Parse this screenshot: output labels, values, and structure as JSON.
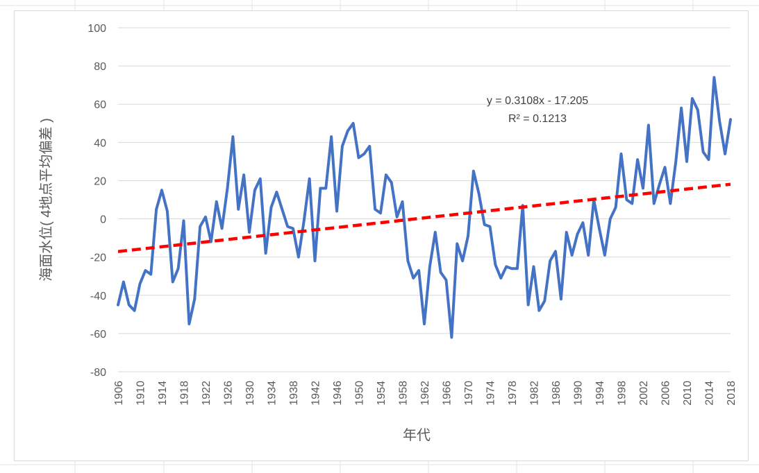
{
  "chart_data": {
    "type": "line",
    "title": "",
    "xlabel": "年代",
    "ylabel": "海面水位( 4地点平均偏差 )",
    "ylim": [
      -80,
      100
    ],
    "yticks": [
      100,
      80,
      60,
      40,
      20,
      0,
      -20,
      -40,
      -60,
      -80
    ],
    "xlim": [
      1906,
      2018
    ],
    "xticks": [
      1906,
      1910,
      1914,
      1918,
      1922,
      1926,
      1930,
      1934,
      1938,
      1942,
      1946,
      1950,
      1954,
      1958,
      1962,
      1966,
      1970,
      1974,
      1978,
      1982,
      1986,
      1990,
      1994,
      1998,
      2002,
      2006,
      2010,
      2014,
      2018
    ],
    "grid": true,
    "legend": "none",
    "series": [
      {
        "color": "#4472c4",
        "x": [
          1906,
          1907,
          1908,
          1909,
          1910,
          1911,
          1912,
          1913,
          1914,
          1915,
          1916,
          1917,
          1918,
          1919,
          1920,
          1921,
          1922,
          1923,
          1924,
          1925,
          1926,
          1927,
          1928,
          1929,
          1930,
          1931,
          1932,
          1933,
          1934,
          1935,
          1936,
          1937,
          1938,
          1939,
          1940,
          1941,
          1942,
          1943,
          1944,
          1945,
          1946,
          1947,
          1948,
          1949,
          1950,
          1951,
          1952,
          1953,
          1954,
          1955,
          1956,
          1957,
          1958,
          1959,
          1960,
          1961,
          1962,
          1963,
          1964,
          1965,
          1966,
          1967,
          1968,
          1969,
          1970,
          1971,
          1972,
          1973,
          1974,
          1975,
          1976,
          1977,
          1978,
          1979,
          1980,
          1981,
          1982,
          1983,
          1984,
          1985,
          1986,
          1987,
          1988,
          1989,
          1990,
          1991,
          1992,
          1993,
          1994,
          1995,
          1996,
          1997,
          1998,
          1999,
          2000,
          2001,
          2002,
          2003,
          2004,
          2005,
          2006,
          2007,
          2008,
          2009,
          2010,
          2011,
          2012,
          2013,
          2014,
          2015,
          2016,
          2017,
          2018
        ],
        "y": [
          -45,
          -33,
          -45,
          -48,
          -34,
          -27,
          -29,
          5,
          15,
          4,
          -33,
          -26,
          -1,
          -55,
          -42,
          -4,
          1,
          -12,
          9,
          -5,
          16,
          43,
          5,
          23,
          -7,
          15,
          21,
          -18,
          6,
          14,
          5,
          -4,
          -5,
          -20,
          -1,
          21,
          -22,
          16,
          16,
          43,
          4,
          38,
          46,
          50,
          32,
          34,
          38,
          5,
          3,
          23,
          19,
          1,
          9,
          -22,
          -31,
          -27,
          -55,
          -25,
          -7,
          -28,
          -32,
          -62,
          -13,
          -22,
          -9,
          25,
          13,
          -3,
          -4,
          -24,
          -31,
          -25,
          -26,
          -26,
          7,
          -45,
          -25,
          -48,
          -43,
          -22,
          -17,
          -42,
          -7,
          -19,
          -8,
          -2,
          -19,
          10,
          -5,
          -19,
          0,
          6,
          34,
          10,
          8,
          31,
          16,
          49,
          8,
          18,
          27,
          8,
          30,
          58,
          30,
          63,
          57,
          35,
          31,
          74,
          51,
          34,
          52
        ]
      },
      {
        "type": "trendline",
        "style": "dashed",
        "color": "#ff0000",
        "x": [
          1906,
          2018
        ],
        "y": [
          -17.1,
          18.1
        ]
      }
    ],
    "annotations": [
      "y = 0.3108x - 17.205",
      "R² = 0.1213"
    ]
  }
}
